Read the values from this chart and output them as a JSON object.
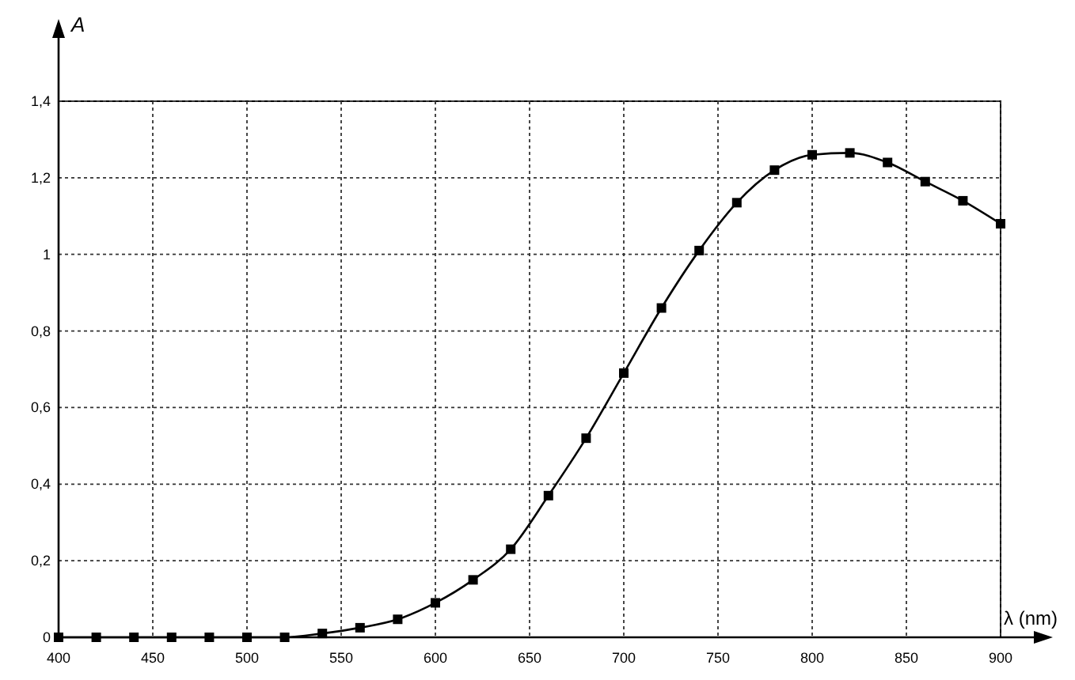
{
  "chart_data": {
    "type": "line",
    "xlabel": "λ (nm)",
    "ylabel": "A",
    "x": [
      400,
      420,
      440,
      460,
      480,
      500,
      520,
      540,
      560,
      580,
      600,
      620,
      640,
      660,
      680,
      700,
      720,
      740,
      760,
      780,
      800,
      820,
      840,
      860,
      880,
      900
    ],
    "series": [
      {
        "color": "#000000",
        "values": [
          0,
          0,
          0,
          0,
          0,
          0,
          0,
          0.01,
          0.025,
          0.047,
          0.09,
          0.15,
          0.23,
          0.37,
          0.52,
          0.69,
          0.86,
          1.01,
          1.135,
          1.22,
          1.26,
          1.265,
          1.24,
          1.19,
          1.14,
          1.08
        ]
      }
    ],
    "xlim": [
      400,
      900
    ],
    "xticks": [
      400,
      450,
      500,
      550,
      600,
      650,
      700,
      750,
      800,
      850,
      900
    ],
    "ylim": [
      0,
      1.4
    ],
    "yticks": [
      {
        "value": 0,
        "label": "0"
      },
      {
        "value": 0.2,
        "label": "0,2"
      },
      {
        "value": 0.4,
        "label": "0,4"
      },
      {
        "value": 0.6,
        "label": "0,6"
      },
      {
        "value": 0.8,
        "label": "0,8"
      },
      {
        "value": 1,
        "label": "1"
      },
      {
        "value": 1.2,
        "label": "1,2"
      },
      {
        "value": 1.4,
        "label": "1,4"
      }
    ],
    "grid": true,
    "marker": "square",
    "line_style": "solid"
  }
}
